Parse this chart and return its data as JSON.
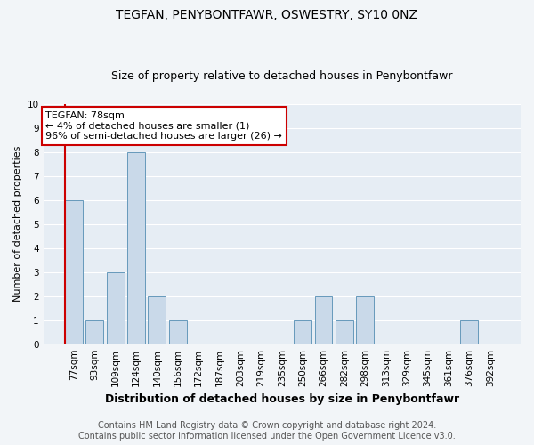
{
  "title": "TEGFAN, PENYBONTFAWR, OSWESTRY, SY10 0NZ",
  "subtitle": "Size of property relative to detached houses in Penybontfawr",
  "xlabel": "Distribution of detached houses by size in Penybontfawr",
  "ylabel": "Number of detached properties",
  "categories": [
    "77sqm",
    "93sqm",
    "109sqm",
    "124sqm",
    "140sqm",
    "156sqm",
    "172sqm",
    "187sqm",
    "203sqm",
    "219sqm",
    "235sqm",
    "250sqm",
    "266sqm",
    "282sqm",
    "298sqm",
    "313sqm",
    "329sqm",
    "345sqm",
    "361sqm",
    "376sqm",
    "392sqm"
  ],
  "values": [
    6,
    1,
    3,
    8,
    2,
    1,
    0,
    0,
    0,
    0,
    0,
    1,
    2,
    1,
    2,
    0,
    0,
    0,
    0,
    1,
    0
  ],
  "bar_color": "#c9d9e9",
  "bar_edge_color": "#6699bb",
  "annotation_title": "TEGFAN: 78sqm",
  "annotation_line1": "← 4% of detached houses are smaller (1)",
  "annotation_line2": "96% of semi-detached houses are larger (26) →",
  "annotation_box_facecolor": "#ffffff",
  "annotation_box_edgecolor": "#cc0000",
  "highlight_line_color": "#cc0000",
  "ylim": [
    0,
    10
  ],
  "yticks": [
    0,
    1,
    2,
    3,
    4,
    5,
    6,
    7,
    8,
    9,
    10
  ],
  "footer_line1": "Contains HM Land Registry data © Crown copyright and database right 2024.",
  "footer_line2": "Contains public sector information licensed under the Open Government Licence v3.0.",
  "fig_facecolor": "#f2f5f8",
  "plot_facecolor": "#e6edf4",
  "grid_color": "#ffffff",
  "title_fontsize": 10,
  "subtitle_fontsize": 9,
  "xlabel_fontsize": 9,
  "ylabel_fontsize": 8,
  "tick_fontsize": 7.5,
  "annotation_fontsize": 8,
  "footer_fontsize": 7
}
